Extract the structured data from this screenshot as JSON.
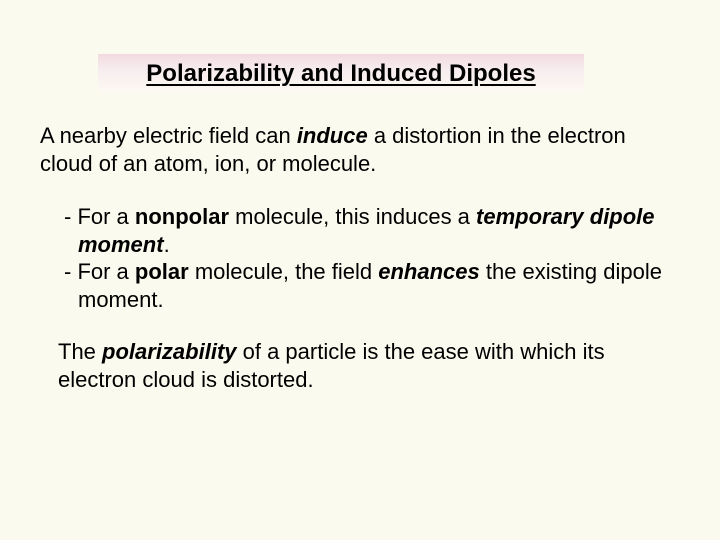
{
  "colors": {
    "page_bg": "#fafaee",
    "title_gradient_top": "#f1dadf",
    "title_gradient_mid": "#f7edef",
    "title_gradient_bottom": "#fdfaf2",
    "text": "#000000"
  },
  "typography": {
    "title_fontsize": 24,
    "body_fontsize": 22,
    "font_family": "Arial"
  },
  "title": "Polarizability and Induced Dipoles",
  "intro_parts": {
    "p1": "A nearby electric field can ",
    "p2_bi": "induce",
    "p3": " a distortion in the electron cloud of an atom, ion, or molecule."
  },
  "bullet1": {
    "a": "- For a ",
    "b_bold": "nonpolar",
    "c": " molecule, this induces a ",
    "d_bi": "temporary dipole moment",
    "e": "."
  },
  "bullet2": {
    "a": "- For a ",
    "b_bold": "polar",
    "c": " molecule, the field ",
    "d_bi": "enhances",
    "e": " the existing dipole moment."
  },
  "conclusion": {
    "a": "The ",
    "b_bi": "polarizability",
    "c": " of a particle is the ease with which its electron cloud is distorted."
  }
}
